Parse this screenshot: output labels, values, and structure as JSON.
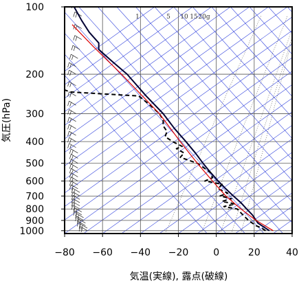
{
  "chart_data": {
    "type": "line",
    "chart_kind": "skew-T log-P emagram",
    "xlabel": "気温(実線), 露点(破線)",
    "ylabel": "気圧(hPa)",
    "xlim": [
      -80,
      40
    ],
    "ylim": [
      1030,
      100
    ],
    "y_scale": "log",
    "x_ticks": [
      -80,
      -60,
      -40,
      -20,
      0,
      20,
      40
    ],
    "x_tick_labels": [
      "−80",
      "−60",
      "−40",
      "−20",
      "0",
      "20",
      "40"
    ],
    "y_ticks": [
      100,
      200,
      300,
      400,
      500,
      600,
      700,
      800,
      900,
      1000
    ],
    "y_tick_labels": [
      "100",
      "200",
      "300",
      "400",
      "500",
      "600",
      "700",
      "800",
      "900",
      "1000"
    ],
    "grid": true,
    "mixing_ratio_labels": [
      "1",
      "5",
      "10",
      "15",
      "20g"
    ],
    "mixing_ratio_values": [
      1,
      5,
      10,
      15,
      20
    ],
    "series": [
      {
        "role": "temperature",
        "style": "solid",
        "color": "#000033",
        "points": [
          {
            "p": 1000,
            "t": 28
          },
          {
            "p": 975,
            "t": 26
          },
          {
            "p": 950,
            "t": 24
          },
          {
            "p": 925,
            "t": 22
          },
          {
            "p": 900,
            "t": 21
          },
          {
            "p": 850,
            "t": 19
          },
          {
            "p": 800,
            "t": 16
          },
          {
            "p": 750,
            "t": 13
          },
          {
            "p": 700,
            "t": 9
          },
          {
            "p": 650,
            "t": 5
          },
          {
            "p": 600,
            "t": 1
          },
          {
            "p": 550,
            "t": -3
          },
          {
            "p": 500,
            "t": -7
          },
          {
            "p": 450,
            "t": -11
          },
          {
            "p": 400,
            "t": -16
          },
          {
            "p": 350,
            "t": -22
          },
          {
            "p": 300,
            "t": -28
          },
          {
            "p": 250,
            "t": -37
          },
          {
            "p": 200,
            "t": -47
          },
          {
            "p": 175,
            "t": -55
          },
          {
            "p": 155,
            "t": -62
          },
          {
            "p": 145,
            "t": -62
          },
          {
            "p": 130,
            "t": -67
          },
          {
            "p": 115,
            "t": -71
          },
          {
            "p": 100,
            "t": -75
          }
        ]
      },
      {
        "role": "dewpoint",
        "style": "dashed",
        "color": "#000000",
        "points": [
          {
            "p": 1000,
            "t": 26
          },
          {
            "p": 975,
            "t": 24
          },
          {
            "p": 950,
            "t": 21
          },
          {
            "p": 925,
            "t": 19
          },
          {
            "p": 900,
            "t": 17
          },
          {
            "p": 850,
            "t": 14
          },
          {
            "p": 800,
            "t": 11
          },
          {
            "p": 780,
            "t": 4
          },
          {
            "p": 760,
            "t": 10
          },
          {
            "p": 740,
            "t": 3
          },
          {
            "p": 720,
            "t": 8
          },
          {
            "p": 700,
            "t": 2
          },
          {
            "p": 680,
            "t": 6
          },
          {
            "p": 650,
            "t": 1
          },
          {
            "p": 620,
            "t": 3
          },
          {
            "p": 600,
            "t": -6
          },
          {
            "p": 580,
            "t": -2
          },
          {
            "p": 550,
            "t": -3
          },
          {
            "p": 500,
            "t": -10
          },
          {
            "p": 470,
            "t": -19
          },
          {
            "p": 450,
            "t": -17
          },
          {
            "p": 430,
            "t": -21
          },
          {
            "p": 420,
            "t": -18
          },
          {
            "p": 400,
            "t": -23
          },
          {
            "p": 380,
            "t": -27
          },
          {
            "p": 360,
            "t": -26
          },
          {
            "p": 340,
            "t": -28
          },
          {
            "p": 320,
            "t": -28
          },
          {
            "p": 300,
            "t": -30
          },
          {
            "p": 270,
            "t": -36
          },
          {
            "p": 250,
            "t": -41
          },
          {
            "p": 240,
            "t": -77
          },
          {
            "p": 235,
            "t": -80
          }
        ]
      },
      {
        "role": "reference-lapse",
        "style": "solid",
        "color": "#dd0000",
        "points": [
          {
            "p": 1000,
            "t": 30
          },
          {
            "p": 900,
            "t": 21
          },
          {
            "p": 800,
            "t": 13
          },
          {
            "p": 700,
            "t": 5
          },
          {
            "p": 600,
            "t": -2
          },
          {
            "p": 500,
            "t": -10
          },
          {
            "p": 400,
            "t": -19
          },
          {
            "p": 300,
            "t": -30
          },
          {
            "p": 200,
            "t": -50
          },
          {
            "p": 150,
            "t": -65
          },
          {
            "p": 120,
            "t": -76
          }
        ]
      }
    ],
    "wind_barbs": {
      "note": "wind barbs plotted along left side",
      "levels": [
        {
          "p": 1000,
          "x": -68
        },
        {
          "p": 975,
          "x": -68
        },
        {
          "p": 950,
          "x": -69
        },
        {
          "p": 925,
          "x": -69
        },
        {
          "p": 900,
          "x": -70
        },
        {
          "p": 875,
          "x": -70
        },
        {
          "p": 850,
          "x": -71
        },
        {
          "p": 825,
          "x": -71
        },
        {
          "p": 800,
          "x": -72
        },
        {
          "p": 775,
          "x": -72
        },
        {
          "p": 750,
          "x": -72
        },
        {
          "p": 725,
          "x": -72
        },
        {
          "p": 700,
          "x": -72
        },
        {
          "p": 675,
          "x": -72
        },
        {
          "p": 650,
          "x": -73
        },
        {
          "p": 625,
          "x": -73
        },
        {
          "p": 600,
          "x": -73
        },
        {
          "p": 575,
          "x": -73
        },
        {
          "p": 550,
          "x": -73
        },
        {
          "p": 525,
          "x": -73
        },
        {
          "p": 500,
          "x": -73
        },
        {
          "p": 475,
          "x": -73
        },
        {
          "p": 450,
          "x": -73
        },
        {
          "p": 425,
          "x": -74
        },
        {
          "p": 400,
          "x": -74
        },
        {
          "p": 375,
          "x": -74
        },
        {
          "p": 350,
          "x": -74
        },
        {
          "p": 325,
          "x": -74
        },
        {
          "p": 300,
          "x": -74
        },
        {
          "p": 275,
          "x": -74
        },
        {
          "p": 250,
          "x": -74
        },
        {
          "p": 225,
          "x": -74
        },
        {
          "p": 200,
          "x": -74
        },
        {
          "p": 185,
          "x": -74
        },
        {
          "p": 170,
          "x": -73
        },
        {
          "p": 155,
          "x": -72
        },
        {
          "p": 140,
          "x": -71
        },
        {
          "p": 125,
          "x": -71
        },
        {
          "p": 110,
          "x": -71
        },
        {
          "p": 100,
          "x": -73
        }
      ]
    }
  }
}
